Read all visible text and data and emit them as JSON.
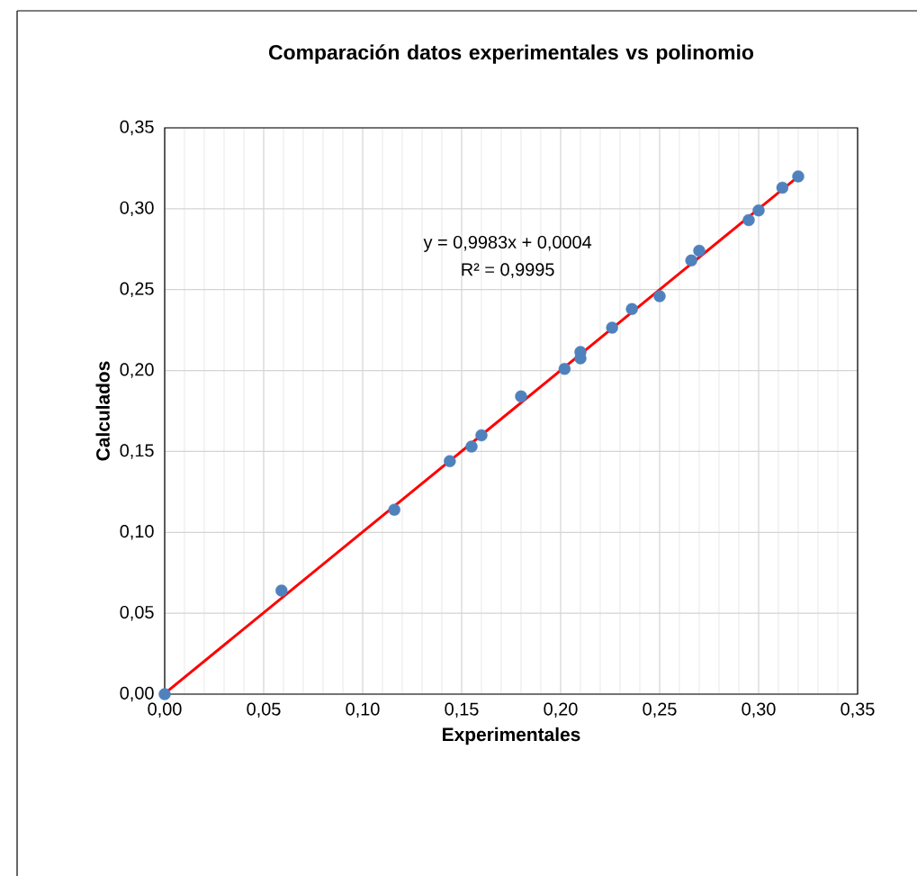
{
  "chart_data": {
    "type": "scatter",
    "title": "Comparación datos experimentales vs polinomio",
    "xlabel": "Experimentales",
    "ylabel": "Calculados",
    "annotations": [
      "y = 0,9983x + 0,0004",
      "R² = 0,9995"
    ],
    "series": [
      {
        "marker": "circle",
        "color": "#4f81bd",
        "x": [
          0,
          0.059,
          0.116,
          0.144,
          0.155,
          0.16,
          0.18,
          0.202,
          0.21,
          0.21,
          0.226,
          0.236,
          0.25,
          0.266,
          0.27,
          0.295,
          0.3,
          0.312,
          0.32
        ],
        "values": [
          0,
          0.064,
          0.114,
          0.144,
          0.153,
          0.16,
          0.184,
          0.201,
          0.2115,
          0.2075,
          0.2265,
          0.238,
          0.246,
          0.268,
          0.274,
          0.293,
          0.299,
          0.313,
          0.32
        ]
      },
      {
        "type": "line",
        "marker": "none",
        "color": "#ff0000",
        "x": [
          0,
          0.32
        ],
        "values": [
          0.0004,
          0.3199
        ]
      }
    ],
    "grid": true,
    "xlim": [
      0,
      0.35
    ],
    "ylim": [
      0,
      0.35
    ],
    "xticks": [
      {
        "value": 0,
        "label": "0,00"
      },
      {
        "value": 0.05,
        "label": "0,05"
      },
      {
        "value": 0.1,
        "label": "0,10"
      },
      {
        "value": 0.15,
        "label": "0,15"
      },
      {
        "value": 0.2,
        "label": "0,20"
      },
      {
        "value": 0.25,
        "label": "0,25"
      },
      {
        "value": 0.3,
        "label": "0,30"
      },
      {
        "value": 0.35,
        "label": "0,35"
      }
    ],
    "yticks": [
      {
        "value": 0,
        "label": "0,00"
      },
      {
        "value": 0.05,
        "label": "0,05"
      },
      {
        "value": 0.1,
        "label": "0,10"
      },
      {
        "value": 0.15,
        "label": "0,15"
      },
      {
        "value": 0.2,
        "label": "0,20"
      },
      {
        "value": 0.25,
        "label": "0,25"
      },
      {
        "value": 0.3,
        "label": "0,30"
      },
      {
        "value": 0.35,
        "label": "0,35"
      }
    ]
  }
}
